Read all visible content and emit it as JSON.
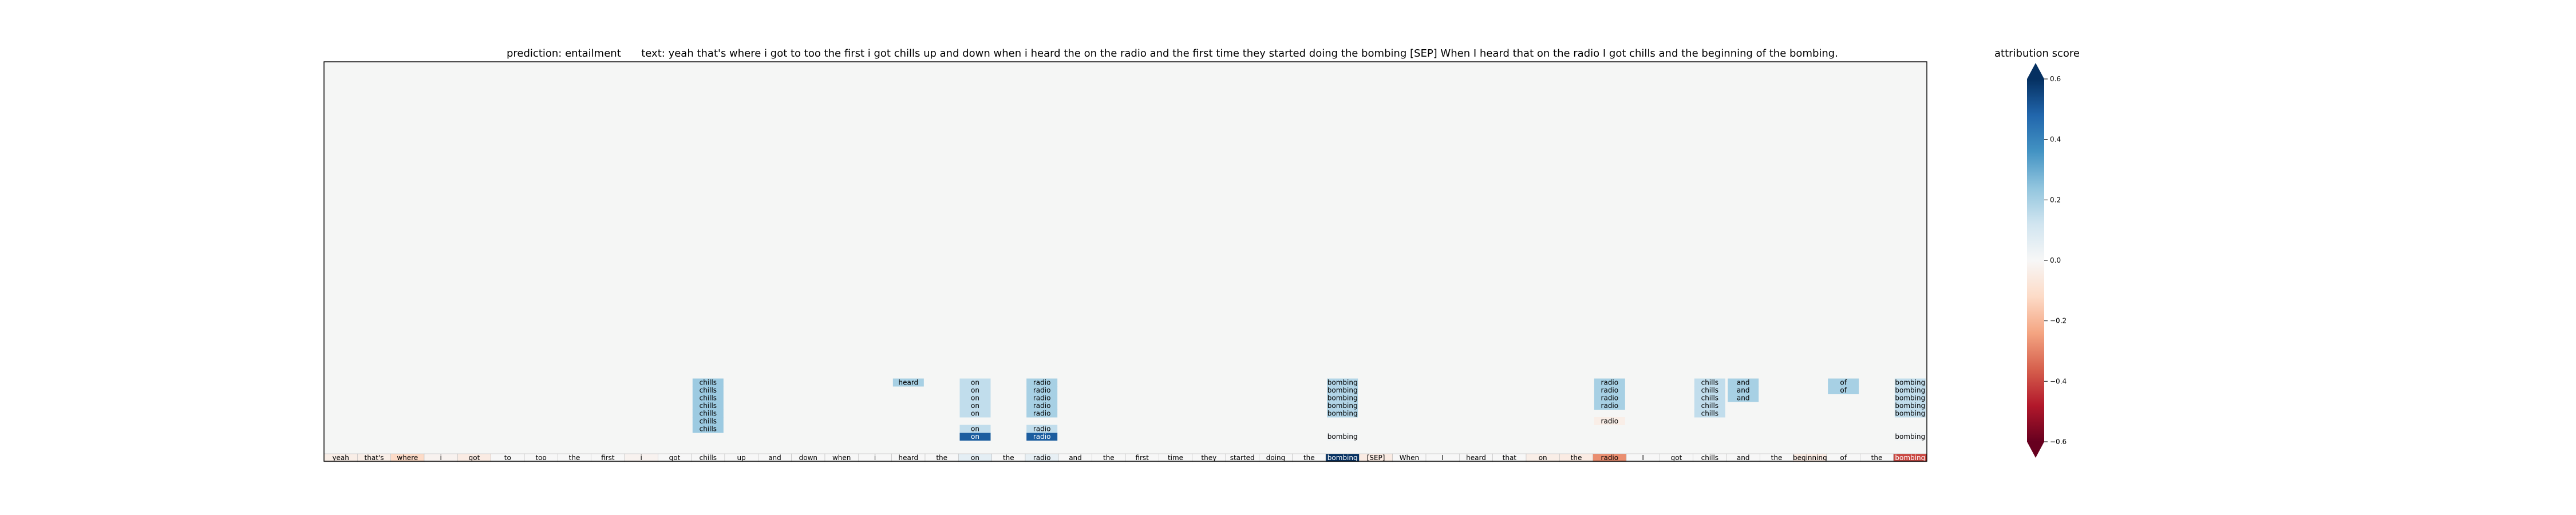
{
  "header": {
    "prediction_label": "prediction:",
    "prediction_value": "entailment",
    "text_label": "text:",
    "text_value": "yeah that's where i got to too the first i got chills up and down when i heard the on the radio and the first time they started doing the bombing [SEP] When I heard that on the radio I got chills and the beginning of the bombing."
  },
  "colorbar": {
    "title": "attribution score",
    "ticks": [
      "0.6",
      "0.4",
      "0.2",
      "0.0",
      "−0.2",
      "−0.4",
      "−0.6"
    ],
    "range": [
      -0.6,
      0.6
    ],
    "extend": "both",
    "colormap": "RdBu",
    "colormap_stops": [
      "#67001f",
      "#b2182b",
      "#d6604d",
      "#f4a582",
      "#fddbc7",
      "#f7f7f7",
      "#d1e5f0",
      "#92c5de",
      "#4393c3",
      "#2166ac",
      "#053061"
    ]
  },
  "chart_data": {
    "type": "heatmap",
    "title": "prediction:  entailment     text:  yeah that's where i got to too the first i got chills up and down when i heard the on the radio and the first time they started doing the bombing [SEP] When I heard that on the radio I got chills and the beginning of the bombing.",
    "grid": false,
    "background_color": "#f5f6f5",
    "tokens": [
      "yeah",
      "that's",
      "where",
      "i",
      "got",
      "to",
      "too",
      "the",
      "first",
      "i",
      "got",
      "chills",
      "up",
      "and",
      "down",
      "when",
      "i",
      "heard",
      "the",
      "on",
      "the",
      "radio",
      "and",
      "the",
      "first",
      "time",
      "they",
      "started",
      "doing",
      "the",
      "bombing",
      "[SEP]",
      "When",
      "I",
      "heard",
      "that",
      "on",
      "the",
      "radio",
      "I",
      "got",
      "chills",
      "and",
      "the",
      "beginning",
      "of",
      "the",
      "bombing"
    ],
    "token_scores": [
      -0.04,
      -0.04,
      -0.12,
      -0.02,
      -0.05,
      0.0,
      0.0,
      0.0,
      0.0,
      -0.02,
      0.0,
      0.0,
      0.0,
      0.0,
      0.0,
      0.0,
      0.0,
      0.0,
      0.0,
      0.06,
      0.0,
      0.05,
      0.0,
      0.0,
      0.0,
      0.0,
      0.0,
      0.0,
      0.0,
      0.0,
      0.9,
      -0.05,
      0.0,
      0.0,
      0.0,
      0.0,
      -0.04,
      -0.05,
      -0.28,
      0.0,
      0.0,
      0.0,
      0.0,
      0.0,
      -0.05,
      0.0,
      0.0,
      -0.4
    ],
    "cells": [
      {
        "col": 11,
        "level": 1,
        "text": "chills",
        "score": 0.22
      },
      {
        "col": 11,
        "level": 2,
        "text": "chills",
        "score": 0.22
      },
      {
        "col": 11,
        "level": 3,
        "text": "chills",
        "score": 0.22
      },
      {
        "col": 11,
        "level": 4,
        "text": "chills",
        "score": 0.22
      },
      {
        "col": 11,
        "level": 5,
        "text": "chills",
        "score": 0.22
      },
      {
        "col": 11,
        "level": 6,
        "text": "chills",
        "score": 0.22
      },
      {
        "col": 11,
        "level": 7,
        "text": "chills",
        "score": 0.22
      },
      {
        "col": 17,
        "level": 7,
        "text": "heard",
        "score": 0.2
      },
      {
        "col": 19,
        "level": 0,
        "text": "on",
        "score": 0.5
      },
      {
        "col": 19,
        "level": 1,
        "text": "on",
        "score": 0.15
      },
      {
        "col": 19,
        "level": 3,
        "text": "on",
        "score": 0.15
      },
      {
        "col": 19,
        "level": 4,
        "text": "on",
        "score": 0.15
      },
      {
        "col": 19,
        "level": 5,
        "text": "on",
        "score": 0.15
      },
      {
        "col": 19,
        "level": 6,
        "text": "on",
        "score": 0.15
      },
      {
        "col": 19,
        "level": 7,
        "text": "on",
        "score": 0.15
      },
      {
        "col": 21,
        "level": 0,
        "text": "radio",
        "score": 0.5
      },
      {
        "col": 21,
        "level": 1,
        "text": "radio",
        "score": 0.15
      },
      {
        "col": 21,
        "level": 3,
        "text": "radio",
        "score": 0.2
      },
      {
        "col": 21,
        "level": 4,
        "text": "radio",
        "score": 0.2
      },
      {
        "col": 21,
        "level": 5,
        "text": "radio",
        "score": 0.2
      },
      {
        "col": 21,
        "level": 6,
        "text": "radio",
        "score": 0.2
      },
      {
        "col": 21,
        "level": 7,
        "text": "radio",
        "score": 0.2
      },
      {
        "col": 30,
        "level": 0,
        "text": "bombing",
        "score": 0.02
      },
      {
        "col": 30,
        "level": 3,
        "text": "bombing",
        "score": 0.18
      },
      {
        "col": 30,
        "level": 4,
        "text": "bombing",
        "score": 0.18
      },
      {
        "col": 30,
        "level": 5,
        "text": "bombing",
        "score": 0.18
      },
      {
        "col": 30,
        "level": 6,
        "text": "bombing",
        "score": 0.18
      },
      {
        "col": 30,
        "level": 7,
        "text": "bombing",
        "score": 0.18
      },
      {
        "col": 38,
        "level": 2,
        "text": "radio",
        "score": -0.04
      },
      {
        "col": 38,
        "level": 4,
        "text": "radio",
        "score": 0.2
      },
      {
        "col": 38,
        "level": 5,
        "text": "radio",
        "score": 0.2
      },
      {
        "col": 38,
        "level": 6,
        "text": "radio",
        "score": 0.2
      },
      {
        "col": 38,
        "level": 7,
        "text": "radio",
        "score": 0.2
      },
      {
        "col": 41,
        "level": 3,
        "text": "chills",
        "score": 0.15
      },
      {
        "col": 41,
        "level": 4,
        "text": "chills",
        "score": 0.15
      },
      {
        "col": 41,
        "level": 5,
        "text": "chills",
        "score": 0.15
      },
      {
        "col": 41,
        "level": 6,
        "text": "chills",
        "score": 0.15
      },
      {
        "col": 41,
        "level": 7,
        "text": "chills",
        "score": 0.15
      },
      {
        "col": 42,
        "level": 5,
        "text": "and",
        "score": 0.2
      },
      {
        "col": 42,
        "level": 6,
        "text": "and",
        "score": 0.2
      },
      {
        "col": 42,
        "level": 7,
        "text": "and",
        "score": 0.2
      },
      {
        "col": 45,
        "level": 6,
        "text": "of",
        "score": 0.2
      },
      {
        "col": 45,
        "level": 7,
        "text": "of",
        "score": 0.2
      },
      {
        "col": 47,
        "level": 0,
        "text": "bombing",
        "score": 0.02
      },
      {
        "col": 47,
        "level": 3,
        "text": "bombing",
        "score": 0.15
      },
      {
        "col": 47,
        "level": 4,
        "text": "bombing",
        "score": 0.15
      },
      {
        "col": 47,
        "level": 5,
        "text": "bombing",
        "score": 0.15
      },
      {
        "col": 47,
        "level": 6,
        "text": "bombing",
        "score": 0.15
      },
      {
        "col": 47,
        "level": 7,
        "text": "bombing",
        "score": 0.15
      }
    ]
  }
}
